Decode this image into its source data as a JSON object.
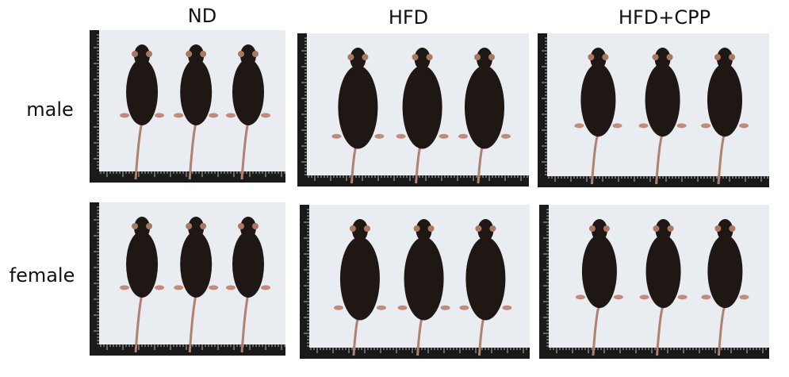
{
  "columns": [
    "ND",
    "HFD",
    "HFD+CPP"
  ],
  "rows": [
    "male",
    "female"
  ]
}
